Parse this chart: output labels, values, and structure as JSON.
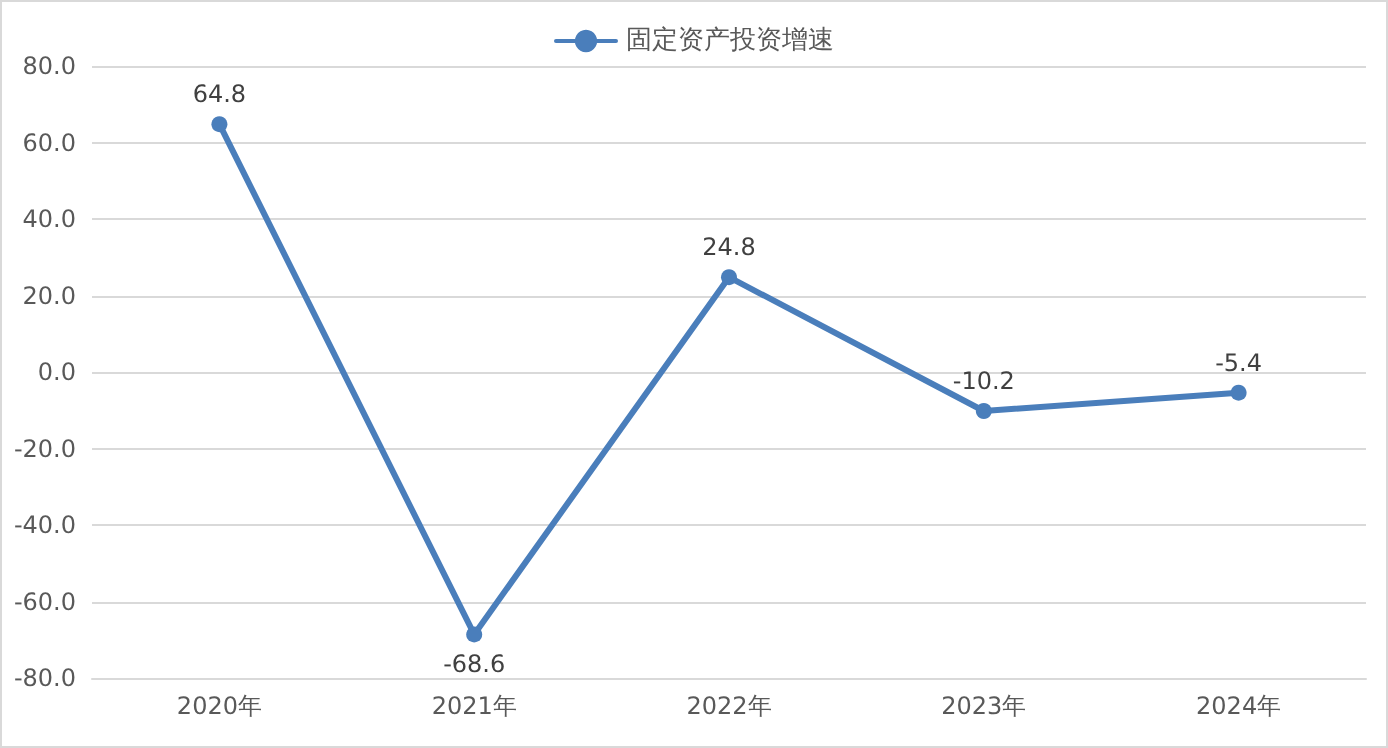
{
  "chart_data": {
    "type": "line",
    "categories": [
      "2020年",
      "2021年",
      "2022年",
      "2023年",
      "2024年"
    ],
    "series": [
      {
        "name": "固定资产投资增速",
        "color": "#4a7ebb",
        "values": [
          64.8,
          -68.6,
          24.8,
          -10.2,
          -5.4
        ]
      }
    ],
    "ylim": [
      -80,
      80
    ],
    "yticks": [
      {
        "value": -80,
        "label": "-80.0"
      },
      {
        "value": -60,
        "label": "-60.0"
      },
      {
        "value": -40,
        "label": "-40.0"
      },
      {
        "value": -20,
        "label": "-20.0"
      },
      {
        "value": 0,
        "label": "0.0"
      },
      {
        "value": 20,
        "label": "20.0"
      },
      {
        "value": 40,
        "label": "40.0"
      },
      {
        "value": 60,
        "label": "60.0"
      },
      {
        "value": 80,
        "label": "80.0"
      }
    ],
    "grid": "y",
    "legend": "top",
    "marker": "circle",
    "line_style": "solid",
    "data_labels": true
  }
}
